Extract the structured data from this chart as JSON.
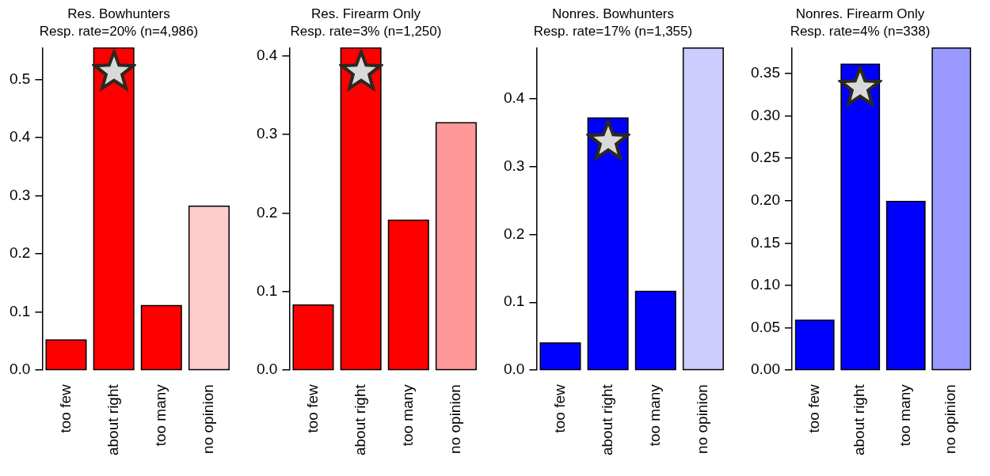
{
  "chart_data": [
    {
      "type": "bar",
      "title": "Res. Bowhunters",
      "subtitle": "Resp. rate=20% (n=4,986)",
      "categories": [
        "too few",
        "about right",
        "too many",
        "no opinion"
      ],
      "values": [
        0.052,
        0.554,
        0.111,
        0.282
      ],
      "colors": [
        "#ff0000",
        "#ff0000",
        "#ff0000",
        "#ffcccc"
      ],
      "ylim": [
        0,
        0.554
      ],
      "yticks": [
        {
          "value": 0,
          "label": "0.0"
        },
        {
          "value": 0.1,
          "label": "0.1"
        },
        {
          "value": 0.2,
          "label": "0.2"
        },
        {
          "value": 0.3,
          "label": "0.3"
        },
        {
          "value": 0.4,
          "label": "0.4"
        },
        {
          "value": 0.5,
          "label": "0.5"
        }
      ],
      "grid": false,
      "legend": false
    },
    {
      "type": "bar",
      "title": "Res. Firearm Only",
      "subtitle": "Resp. rate=3% (n=1,250)",
      "categories": [
        "too few",
        "about right",
        "too many",
        "no opinion"
      ],
      "values": [
        0.083,
        0.41,
        0.191,
        0.315
      ],
      "colors": [
        "#ff0000",
        "#ff0000",
        "#ff0000",
        "#ff9999"
      ],
      "ylim": [
        0,
        0.41
      ],
      "yticks": [
        {
          "value": 0,
          "label": "0.0"
        },
        {
          "value": 0.1,
          "label": "0.1"
        },
        {
          "value": 0.2,
          "label": "0.2"
        },
        {
          "value": 0.3,
          "label": "0.3"
        },
        {
          "value": 0.4,
          "label": "0.4"
        }
      ],
      "grid": false,
      "legend": false
    },
    {
      "type": "bar",
      "title": "Nonres. Bowhunters",
      "subtitle": "Resp. rate=17% (n=1,355)",
      "categories": [
        "too few",
        "about right",
        "too many",
        "no opinion"
      ],
      "values": [
        0.04,
        0.371,
        0.116,
        0.474
      ],
      "colors": [
        "#0000ff",
        "#0000ff",
        "#0000ff",
        "#ccccff"
      ],
      "ylim": [
        0,
        0.474
      ],
      "yticks": [
        {
          "value": 0,
          "label": "0.0"
        },
        {
          "value": 0.1,
          "label": "0.1"
        },
        {
          "value": 0.2,
          "label": "0.2"
        },
        {
          "value": 0.3,
          "label": "0.3"
        },
        {
          "value": 0.4,
          "label": "0.4"
        }
      ],
      "grid": false,
      "legend": false
    },
    {
      "type": "bar",
      "title": "Nonres. Firearm Only",
      "subtitle": "Resp. rate=4% (n=338)",
      "categories": [
        "too few",
        "about right",
        "too many",
        "no opinion"
      ],
      "values": [
        0.059,
        0.361,
        0.199,
        0.38
      ],
      "colors": [
        "#0000ff",
        "#0000ff",
        "#0000ff",
        "#9999ff"
      ],
      "ylim": [
        0,
        0.38
      ],
      "yticks": [
        {
          "value": 0,
          "label": "0.00"
        },
        {
          "value": 0.05,
          "label": "0.05"
        },
        {
          "value": 0.1,
          "label": "0.10"
        },
        {
          "value": 0.15,
          "label": "0.15"
        },
        {
          "value": 0.2,
          "label": "0.20"
        },
        {
          "value": 0.25,
          "label": "0.25"
        },
        {
          "value": 0.3,
          "label": "0.30"
        },
        {
          "value": 0.35,
          "label": "0.35"
        }
      ],
      "grid": false,
      "legend": false
    }
  ]
}
